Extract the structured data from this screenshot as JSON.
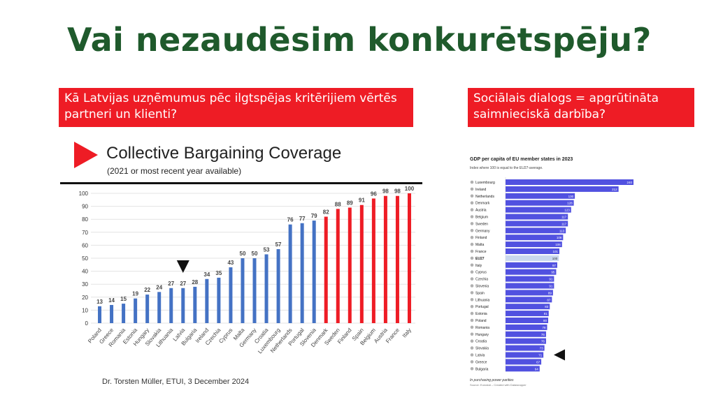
{
  "slide": {
    "title": "Vai nezaudēsim konkurētspēju?",
    "question_left": "Kā Latvijas uzņēmumus pēc ilgtspējas kritērijiem vērtēs partneri un klienti?",
    "question_right": "Sociālais dialogs = apgrūtināta saimnieciskā darbība?",
    "accent_color": "#ee1c25",
    "title_color": "#1f5a2c"
  },
  "credit": "Dr. Torsten Müller, ETUI, 3 December 2024",
  "gdp_footnote": "In purchasing power parities",
  "gdp_source": "Source: Eurostat – Created with Datawrapper",
  "chart_data": [
    {
      "type": "bar",
      "title": "Collective Bargaining Coverage",
      "subtitle": "(2021 or most recent year available)",
      "categories": [
        "Poland",
        "Greece",
        "Romania",
        "Estonia",
        "Hungary",
        "Slovakia",
        "Lithuania",
        "Latvia",
        "Bulgaria",
        "Ireland",
        "Czechia",
        "Cyprus",
        "Malta",
        "Germany",
        "Croatia",
        "Luxembourg",
        "Netherlands",
        "Portugal",
        "Slovenia",
        "Denmark",
        "Sweden",
        "Finland",
        "Spain",
        "Belgium",
        "Austria",
        "France",
        "Italy"
      ],
      "values": [
        13,
        14,
        15,
        19,
        22,
        24,
        27,
        27,
        28,
        34,
        35,
        43,
        50,
        50,
        53,
        57,
        76,
        77,
        79,
        82,
        88,
        89,
        91,
        96,
        98,
        98,
        100
      ],
      "colors": [
        "blue",
        "blue",
        "blue",
        "blue",
        "blue",
        "blue",
        "blue",
        "blue",
        "blue",
        "blue",
        "blue",
        "blue",
        "blue",
        "blue",
        "blue",
        "blue",
        "blue",
        "blue",
        "blue",
        "red",
        "red",
        "red",
        "red",
        "red",
        "red",
        "red",
        "red"
      ],
      "blue": "#4472c4",
      "red": "#ee1c25",
      "yticks": [
        0,
        10,
        20,
        30,
        40,
        50,
        60,
        70,
        80,
        90,
        100
      ],
      "ylim": [
        0,
        100
      ],
      "marker_category": "Latvia",
      "grid": true
    },
    {
      "type": "bar",
      "orientation": "horizontal",
      "title": "GDP per capita of EU member states in 2023",
      "subtitle": "Index where 100 is equal to the EU27-average.",
      "categories": [
        "Luxembourg",
        "Ireland",
        "Netherlands",
        "Denmark",
        "Austria",
        "Belgium",
        "Sweden",
        "Germany",
        "Finland",
        "Malta",
        "France",
        "EU27",
        "Italy",
        "Cyprus",
        "Czechia",
        "Slovenia",
        "Spain",
        "Lithuania",
        "Portugal",
        "Estonia",
        "Poland",
        "Romania",
        "Hungary",
        "Croatia",
        "Slovakia",
        "Latvia",
        "Greece",
        "Bulgaria"
      ],
      "values": [
        240,
        212,
        130,
        128,
        123,
        117,
        117,
        113,
        108,
        106,
        101,
        100,
        97,
        95,
        91,
        91,
        89,
        87,
        83,
        81,
        80,
        78,
        76,
        76,
        73,
        71,
        67,
        64
      ],
      "bar_color": "#5151e0",
      "highlight": "EU27",
      "highlight_color": "#c9d7ee",
      "marker_category": "Latvia",
      "xlim": [
        0,
        240
      ]
    }
  ]
}
